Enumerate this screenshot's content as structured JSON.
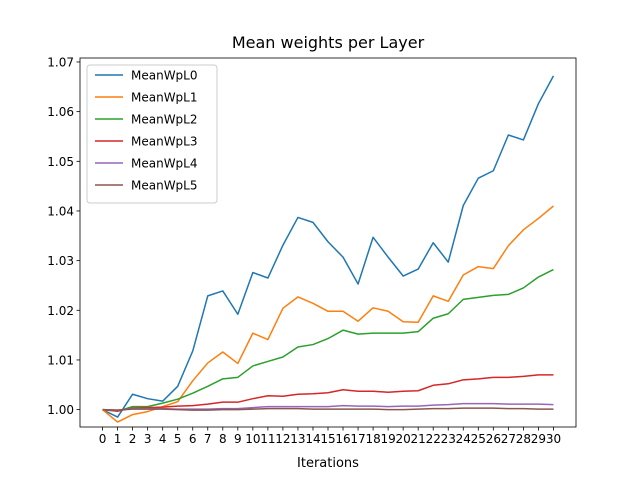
{
  "chart_data": {
    "type": "line",
    "title": "Mean weights per Layer",
    "xlabel": "Iterations",
    "ylabel": "",
    "xlim": [
      -1.5,
      31.5
    ],
    "ylim": [
      0.9965,
      1.0708
    ],
    "x": [
      0,
      1,
      2,
      3,
      4,
      5,
      6,
      7,
      8,
      9,
      10,
      11,
      12,
      13,
      14,
      15,
      16,
      17,
      18,
      19,
      20,
      21,
      22,
      23,
      24,
      25,
      26,
      27,
      28,
      29,
      30
    ],
    "x_tick_labels": [
      "0",
      "1",
      "2",
      "3",
      "4",
      "5",
      "6",
      "7",
      "8",
      "9",
      "10",
      "11",
      "12",
      "13",
      "14",
      "15",
      "16",
      "17",
      "18",
      "19",
      "20",
      "21",
      "22",
      "23",
      "24",
      "25",
      "26",
      "27",
      "28",
      "29",
      "30"
    ],
    "y_ticks": [
      1.0,
      1.01,
      1.02,
      1.03,
      1.04,
      1.05,
      1.06,
      1.07
    ],
    "y_tick_labels": [
      "1.00",
      "1.01",
      "1.02",
      "1.03",
      "1.04",
      "1.05",
      "1.06",
      "1.07"
    ],
    "legend_position": "top-left",
    "grid": false,
    "series": [
      {
        "name": "MeanWpL0",
        "color": "#1f77b4",
        "values": [
          1.0,
          0.9985,
          1.0031,
          1.0022,
          1.0017,
          1.0047,
          1.0118,
          1.0229,
          1.0239,
          1.0192,
          1.0276,
          1.0265,
          1.0331,
          1.0387,
          1.0377,
          1.0338,
          1.0307,
          1.0253,
          1.0347,
          1.0307,
          1.0269,
          1.0283,
          1.0336,
          1.0297,
          1.0411,
          1.0466,
          1.0481,
          1.0553,
          1.0543,
          1.0616,
          1.0672
        ]
      },
      {
        "name": "MeanWpL1",
        "color": "#ff7f0e",
        "values": [
          1.0,
          0.9975,
          0.999,
          0.9996,
          1.0006,
          1.0016,
          1.0058,
          1.0094,
          1.0116,
          1.0093,
          1.0154,
          1.0141,
          1.0204,
          1.0227,
          1.0214,
          1.0198,
          1.0198,
          1.0178,
          1.0205,
          1.0198,
          1.0177,
          1.0176,
          1.0229,
          1.0218,
          1.0271,
          1.0288,
          1.0284,
          1.033,
          1.0362,
          1.0385,
          1.041
        ]
      },
      {
        "name": "MeanWpL2",
        "color": "#2ca02c",
        "values": [
          1.0,
          0.9997,
          1.0006,
          1.0006,
          1.0013,
          1.0021,
          1.0033,
          1.0047,
          1.0062,
          1.0065,
          1.0088,
          1.0097,
          1.0106,
          1.0126,
          1.0131,
          1.0143,
          1.016,
          1.0152,
          1.0154,
          1.0154,
          1.0154,
          1.0157,
          1.0184,
          1.0193,
          1.0222,
          1.0226,
          1.023,
          1.0232,
          1.0245,
          1.0267,
          1.0282
        ]
      },
      {
        "name": "MeanWpL3",
        "color": "#d62728",
        "values": [
          1.0,
          0.9997,
          1.0003,
          1.0004,
          1.0005,
          1.0007,
          1.0008,
          1.0011,
          1.0015,
          1.0015,
          1.0022,
          1.0028,
          1.0027,
          1.0031,
          1.0032,
          1.0034,
          1.004,
          1.0037,
          1.0037,
          1.0035,
          1.0037,
          1.0038,
          1.0049,
          1.0052,
          1.006,
          1.0062,
          1.0065,
          1.0065,
          1.0067,
          1.007,
          1.007
        ]
      },
      {
        "name": "MeanWpL4",
        "color": "#9467bd",
        "values": [
          1.0,
          0.9999,
          1.0002,
          1.0002,
          1.0002,
          1.0001,
          1.0001,
          1.0001,
          1.0002,
          1.0002,
          1.0004,
          1.0006,
          1.0006,
          1.0006,
          1.0006,
          1.0006,
          1.0008,
          1.0007,
          1.0007,
          1.0006,
          1.0007,
          1.0007,
          1.0009,
          1.001,
          1.0012,
          1.0012,
          1.0012,
          1.0011,
          1.0011,
          1.0011,
          1.001
        ]
      },
      {
        "name": "MeanWpL5",
        "color": "#8c564b",
        "values": [
          1.0,
          0.9999,
          1.0001,
          1.0001,
          1.0001,
          1.0,
          0.9999,
          0.9999,
          1.0,
          1.0,
          1.0001,
          1.0002,
          1.0002,
          1.0002,
          1.0001,
          1.0001,
          1.0001,
          1.0001,
          1.0001,
          1.0,
          1.0,
          1.0001,
          1.0002,
          1.0002,
          1.0003,
          1.0003,
          1.0003,
          1.0002,
          1.0002,
          1.0001,
          1.0001
        ]
      }
    ]
  }
}
